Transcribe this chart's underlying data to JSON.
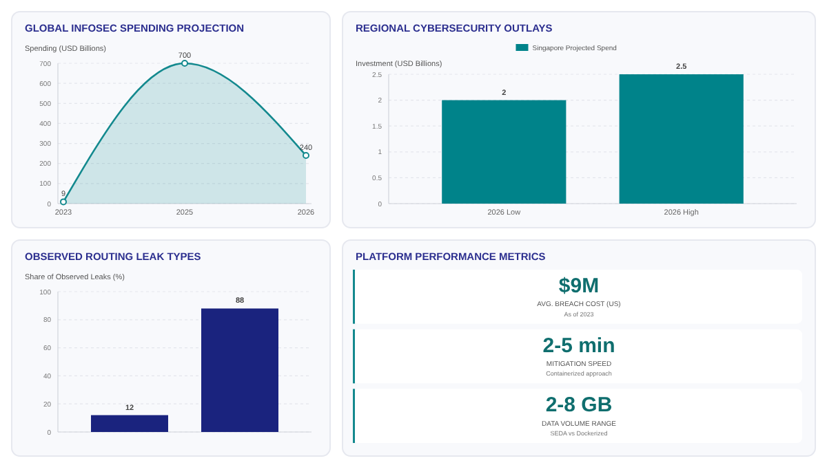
{
  "chart_data": [
    {
      "type": "area",
      "title": "GLOBAL INFOSEC SPENDING PROJECTION",
      "ylabel": "Spending (USD Billions)",
      "categories": [
        "2023",
        "2025",
        "2026"
      ],
      "values": [
        9,
        700,
        240
      ],
      "color": "#13898e",
      "ylim": [
        0,
        700
      ],
      "yticks": [
        0,
        100,
        200,
        300,
        400,
        500,
        600,
        700
      ],
      "grid": "y",
      "data_labels": true,
      "marker": "circle"
    },
    {
      "type": "bar",
      "title": "REGIONAL CYBERSECURITY OUTLAYS",
      "ylabel": "Investment (USD Billions)",
      "categories": [
        "2026 Low",
        "2026 High"
      ],
      "series": [
        {
          "name": "Singapore Projected Spend",
          "color": "#00838a",
          "values": [
            2,
            2.5
          ]
        }
      ],
      "ylim": [
        0,
        2.5
      ],
      "yticks": [
        0,
        0.5,
        1,
        1.5,
        2,
        2.5
      ],
      "grid": "y",
      "legend": "top",
      "data_labels": true
    },
    {
      "type": "bar",
      "title": "OBSERVED ROUTING LEAK TYPES",
      "ylabel": "Share of Observed Leaks (%)",
      "categories": [
        null,
        null
      ],
      "values": [
        12,
        88
      ],
      "color": "#1a237e",
      "ylim": [
        0,
        100
      ],
      "yticks": [
        0,
        20,
        40,
        60,
        80,
        100
      ],
      "grid": "y",
      "data_labels": true
    },
    {
      "type": "other",
      "title": "PLATFORM PERFORMANCE METRICS",
      "annotations": [
        "$9M",
        "AVG. BREACH COST (US)",
        "As of 2023",
        "2-5 min",
        "MITIGATION SPEED",
        "Containerized approach",
        "2-8 GB",
        "DATA VOLUME RANGE",
        "SEDA vs Dockerized"
      ]
    }
  ]
}
